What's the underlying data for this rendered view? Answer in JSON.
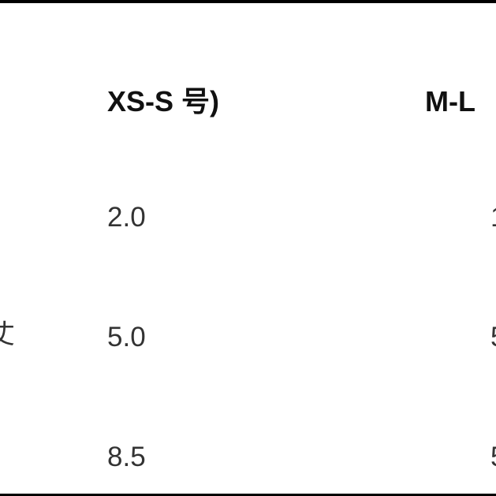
{
  "table": {
    "headers": [
      "XS-S 号)",
      "M-L"
    ],
    "row_label_partial": "丈",
    "columns": [
      {
        "values": [
          "2.0",
          "5.0",
          "8.5"
        ]
      },
      {
        "values_partial": [
          "1",
          "5",
          "5"
        ]
      }
    ]
  }
}
